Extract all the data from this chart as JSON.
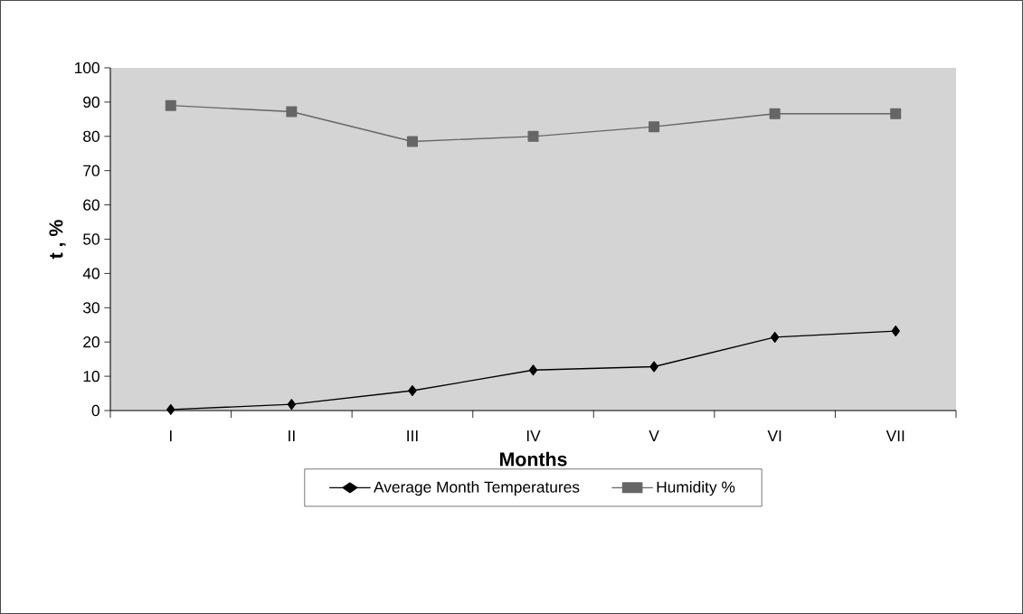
{
  "chart_data": {
    "type": "line",
    "xlabel": "Months",
    "ylabel": "t , %",
    "categories": [
      "I",
      "II",
      "III",
      "IV",
      "V",
      "VI",
      "VII"
    ],
    "series": [
      {
        "name": "Average Month Temperatures",
        "color": "#000000",
        "marker": "diamond",
        "values": [
          0.3,
          1.8,
          5.8,
          11.8,
          12.8,
          21.4,
          23.2
        ]
      },
      {
        "name": "Humidity %",
        "color": "#666666",
        "marker": "square",
        "values": [
          89,
          87.2,
          78.5,
          80,
          82.8,
          86.6,
          86.6
        ]
      }
    ],
    "ylim": [
      0,
      100
    ],
    "yticks": [
      0,
      10,
      20,
      30,
      40,
      50,
      60,
      70,
      80,
      90,
      100
    ],
    "grid": false,
    "legend": "bottom",
    "line_style": "solid"
  }
}
